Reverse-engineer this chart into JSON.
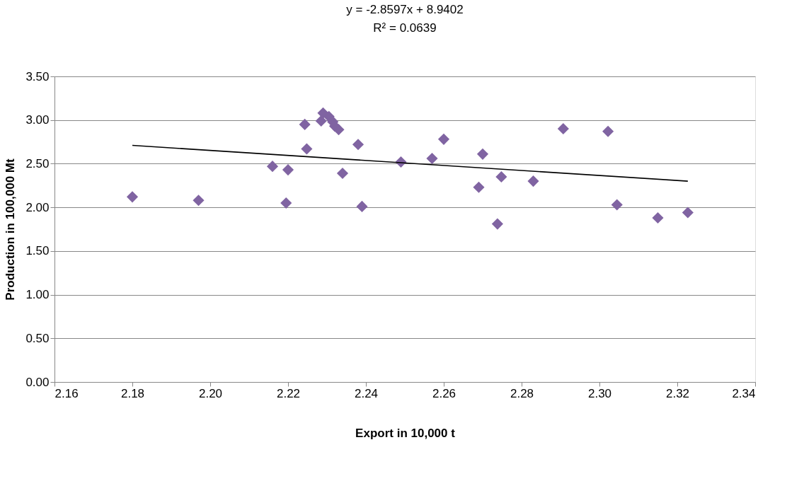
{
  "chart_data": {
    "type": "scatter",
    "xlabel": "Export in 10,000 t",
    "ylabel": "Production in 100,000 Mt",
    "annotations": [
      "y = -2.8597x + 8.9402",
      "R² = 0.0639"
    ],
    "xlim": [
      2.16,
      2.34
    ],
    "xticks": [
      {
        "value": 2.16,
        "label": "2.16"
      },
      {
        "value": 2.18,
        "label": "2.18"
      },
      {
        "value": 2.2,
        "label": "2.20"
      },
      {
        "value": 2.22,
        "label": "2.22"
      },
      {
        "value": 2.24,
        "label": "2.24"
      },
      {
        "value": 2.26,
        "label": "2.26"
      },
      {
        "value": 2.28,
        "label": "2.28"
      },
      {
        "value": 2.3,
        "label": "2.30"
      },
      {
        "value": 2.32,
        "label": "2.32"
      },
      {
        "value": 2.34,
        "label": "2.34"
      }
    ],
    "ylim": [
      0,
      3.5
    ],
    "yticks": [
      {
        "value": 0,
        "label": "0.00"
      },
      {
        "value": 0.5,
        "label": "0.50"
      },
      {
        "value": 1,
        "label": "1.00"
      },
      {
        "value": 1.5,
        "label": "1.50"
      },
      {
        "value": 2,
        "label": "2.00"
      },
      {
        "value": 2.5,
        "label": "2.50"
      },
      {
        "value": 3,
        "label": "3.00"
      },
      {
        "value": 3.5,
        "label": "3.50"
      }
    ],
    "grid": "y",
    "series": [
      {
        "marker": "diamond",
        "color": "#8064a2",
        "x": [
          2.18,
          2.197,
          2.216,
          2.2195,
          2.22,
          2.2243,
          2.2248,
          2.2285,
          2.229,
          2.2305,
          2.2315,
          2.232,
          2.233,
          2.234,
          2.238,
          2.239,
          2.249,
          2.257,
          2.26,
          2.269,
          2.27,
          2.2738,
          2.2748,
          2.283,
          2.2907,
          2.3022,
          2.3045,
          2.315,
          2.3227
        ],
        "values": [
          2.12,
          2.08,
          2.47,
          2.05,
          2.43,
          2.95,
          2.67,
          2.99,
          3.08,
          3.04,
          2.98,
          2.93,
          2.89,
          2.39,
          2.72,
          2.01,
          2.52,
          2.56,
          2.78,
          2.23,
          2.61,
          1.81,
          2.35,
          2.3,
          2.9,
          2.87,
          2.03,
          1.88,
          1.94
        ]
      },
      {
        "type": "line",
        "marker": "none",
        "line_style": "solid",
        "color": "#000000",
        "x": [
          2.18,
          2.3227
        ],
        "values": [
          2.71,
          2.3
        ]
      }
    ]
  }
}
